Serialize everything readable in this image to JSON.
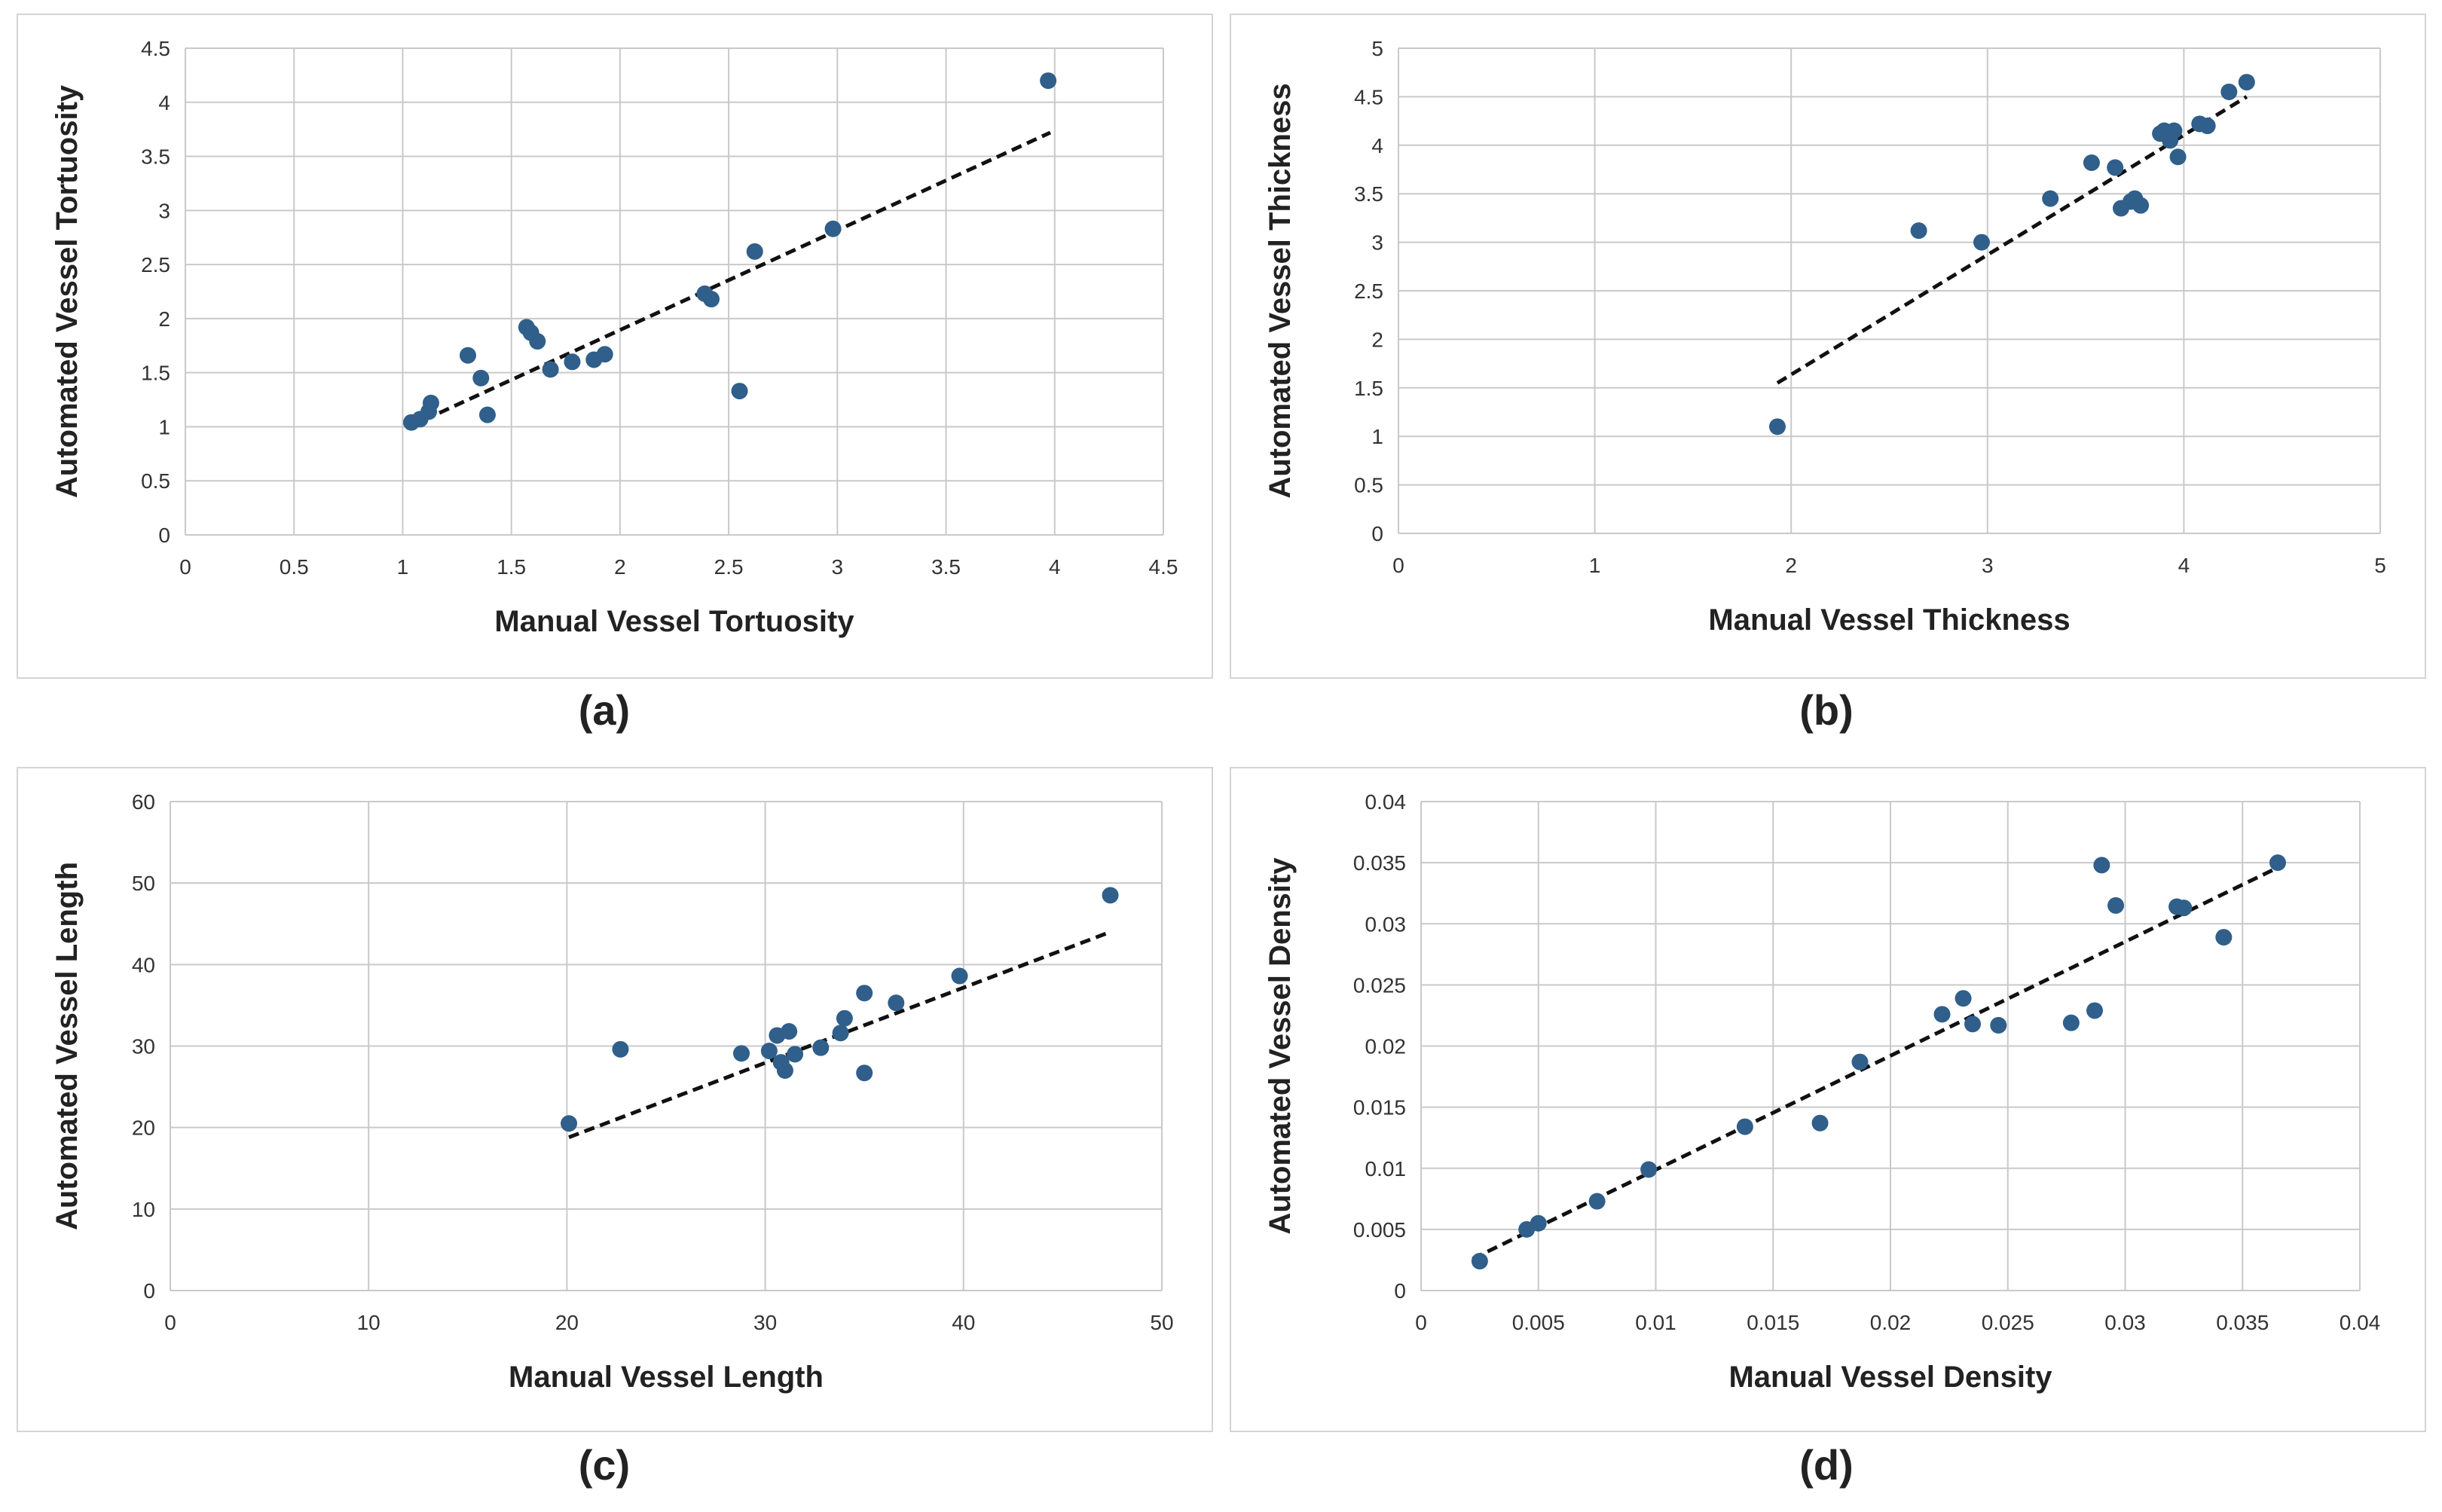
{
  "chart_data": [
    {
      "type": "scatter",
      "caption": "(a)",
      "xlabel": "Manual Vessel Tortuosity",
      "ylabel": "Automated Vessel Tortuosity",
      "xlim": [
        0,
        4.5
      ],
      "ylim": [
        0,
        4.5
      ],
      "xticks": [
        0,
        0.5,
        1,
        1.5,
        2,
        2.5,
        3,
        3.5,
        4,
        4.5
      ],
      "yticks": [
        0,
        0.5,
        1,
        1.5,
        2,
        2.5,
        3,
        3.5,
        4,
        4.5
      ],
      "tick_labels_x": [
        "0",
        "0.5",
        "1",
        "1.5",
        "2",
        "2.5",
        "3",
        "3.5",
        "4",
        "4.5"
      ],
      "tick_labels_y": [
        "0",
        "0.5",
        "1",
        "1.5",
        "2",
        "2.5",
        "3",
        "3.5",
        "4",
        "4.5"
      ],
      "points": [
        [
          1.04,
          1.04
        ],
        [
          1.08,
          1.07
        ],
        [
          1.12,
          1.14
        ],
        [
          1.13,
          1.22
        ],
        [
          1.3,
          1.66
        ],
        [
          1.36,
          1.45
        ],
        [
          1.39,
          1.11
        ],
        [
          1.57,
          1.92
        ],
        [
          1.59,
          1.87
        ],
        [
          1.62,
          1.79
        ],
        [
          1.68,
          1.53
        ],
        [
          1.78,
          1.6
        ],
        [
          1.88,
          1.62
        ],
        [
          1.93,
          1.67
        ],
        [
          2.39,
          2.23
        ],
        [
          2.42,
          2.18
        ],
        [
          2.55,
          1.33
        ],
        [
          2.62,
          2.62
        ],
        [
          2.98,
          2.83
        ],
        [
          3.97,
          4.2
        ]
      ],
      "trendline": [
        [
          1.03,
          1.0
        ],
        [
          3.98,
          3.72
        ]
      ],
      "point_color": "#2f5f8a"
    },
    {
      "type": "scatter",
      "caption": "(b)",
      "xlabel": "Manual Vessel Thickness",
      "ylabel": "Automated Vessel Thickness",
      "xlim": [
        0,
        5
      ],
      "ylim": [
        0,
        5
      ],
      "xticks": [
        0,
        1,
        2,
        3,
        4,
        5
      ],
      "yticks": [
        0,
        0.5,
        1,
        1.5,
        2,
        2.5,
        3,
        3.5,
        4,
        4.5,
        5
      ],
      "tick_labels_x": [
        "0",
        "1",
        "2",
        "3",
        "4",
        "5"
      ],
      "tick_labels_y": [
        "0",
        "0.5",
        "1",
        "1.5",
        "2",
        "2.5",
        "3",
        "3.5",
        "4",
        "4.5",
        "5"
      ],
      "points": [
        [
          1.93,
          1.1
        ],
        [
          2.65,
          3.12
        ],
        [
          2.97,
          3.0
        ],
        [
          3.32,
          3.45
        ],
        [
          3.53,
          3.82
        ],
        [
          3.65,
          3.77
        ],
        [
          3.68,
          3.35
        ],
        [
          3.73,
          3.42
        ],
        [
          3.75,
          3.45
        ],
        [
          3.78,
          3.38
        ],
        [
          3.88,
          4.12
        ],
        [
          3.9,
          4.15
        ],
        [
          3.93,
          4.05
        ],
        [
          3.95,
          4.15
        ],
        [
          3.97,
          3.88
        ],
        [
          4.08,
          4.22
        ],
        [
          4.12,
          4.2
        ],
        [
          4.23,
          4.55
        ],
        [
          4.32,
          4.65
        ]
      ],
      "trendline": [
        [
          1.93,
          1.55
        ],
        [
          4.32,
          4.5
        ]
      ],
      "point_color": "#2f5f8a"
    },
    {
      "type": "scatter",
      "caption": "(c)",
      "xlabel": "Manual Vessel Length",
      "ylabel": "Automated Vessel Length",
      "xlim": [
        0,
        50
      ],
      "ylim": [
        0,
        60
      ],
      "xticks": [
        0,
        10,
        20,
        30,
        40,
        50
      ],
      "yticks": [
        0,
        10,
        20,
        30,
        40,
        50,
        60
      ],
      "tick_labels_x": [
        "0",
        "10",
        "20",
        "30",
        "40",
        "50"
      ],
      "tick_labels_y": [
        "0",
        "10",
        "20",
        "30",
        "40",
        "50",
        "60"
      ],
      "points": [
        [
          20.1,
          20.5
        ],
        [
          22.7,
          29.6
        ],
        [
          28.8,
          29.1
        ],
        [
          30.2,
          29.4
        ],
        [
          30.6,
          31.3
        ],
        [
          30.8,
          28.0
        ],
        [
          31.0,
          27.0
        ],
        [
          31.2,
          31.8
        ],
        [
          31.5,
          29.0
        ],
        [
          32.8,
          29.8
        ],
        [
          33.8,
          31.6
        ],
        [
          34.0,
          33.4
        ],
        [
          35.0,
          36.5
        ],
        [
          35.0,
          26.7
        ],
        [
          36.6,
          35.3
        ],
        [
          39.8,
          38.6
        ],
        [
          47.4,
          48.5
        ]
      ],
      "trendline": [
        [
          20.1,
          18.8
        ],
        [
          47.4,
          44.0
        ]
      ],
      "point_color": "#2f5f8a"
    },
    {
      "type": "scatter",
      "caption": "(d)",
      "xlabel": "Manual Vessel Density",
      "ylabel": "Automated Vessel Density",
      "xlim": [
        0,
        0.04
      ],
      "ylim": [
        0,
        0.04
      ],
      "xticks": [
        0,
        0.005,
        0.01,
        0.015,
        0.02,
        0.025,
        0.03,
        0.035,
        0.04
      ],
      "yticks": [
        0,
        0.005,
        0.01,
        0.015,
        0.02,
        0.025,
        0.03,
        0.035,
        0.04
      ],
      "tick_labels_x": [
        "0",
        "0.005",
        "0.01",
        "0.015",
        "0.02",
        "0.025",
        "0.03",
        "0.035",
        "0.04"
      ],
      "tick_labels_y": [
        "0",
        "0.005",
        "0.01",
        "0.015",
        "0.02",
        "0.025",
        "0.03",
        "0.035",
        "0.04"
      ],
      "points": [
        [
          0.0025,
          0.0024
        ],
        [
          0.0045,
          0.005
        ],
        [
          0.005,
          0.0055
        ],
        [
          0.0075,
          0.0073
        ],
        [
          0.0097,
          0.0099
        ],
        [
          0.0138,
          0.0134
        ],
        [
          0.017,
          0.0137
        ],
        [
          0.0187,
          0.0187
        ],
        [
          0.0222,
          0.0226
        ],
        [
          0.0231,
          0.0239
        ],
        [
          0.0235,
          0.0218
        ],
        [
          0.0246,
          0.0217
        ],
        [
          0.0277,
          0.0219
        ],
        [
          0.0287,
          0.0229
        ],
        [
          0.029,
          0.0348
        ],
        [
          0.0296,
          0.0315
        ],
        [
          0.0322,
          0.0314
        ],
        [
          0.0325,
          0.0313
        ],
        [
          0.0342,
          0.0289
        ],
        [
          0.0365,
          0.035
        ]
      ],
      "trendline": [
        [
          0.0022,
          0.0026
        ],
        [
          0.0365,
          0.0346
        ]
      ],
      "point_color": "#2f5f8a"
    }
  ]
}
